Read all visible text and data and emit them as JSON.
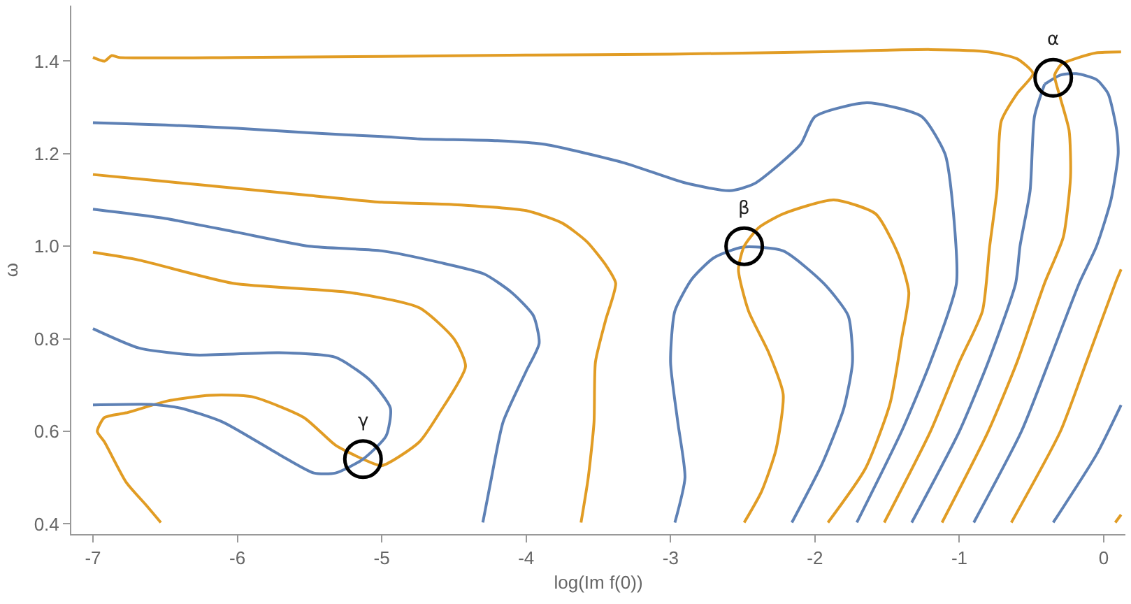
{
  "chart_data": {
    "type": "line",
    "xlabel": "log(Im f(0))",
    "ylabel": "ω",
    "xlim": [
      -7.15,
      0.15
    ],
    "xticks": [
      -7,
      -6,
      -5,
      -4,
      -3,
      -2,
      -1,
      0
    ],
    "ylim": [
      0.378,
      1.52
    ],
    "yticks": [
      0.4,
      0.6,
      0.8,
      {
        "value": 1.0,
        "label": "1.0"
      },
      1.2,
      1.4
    ],
    "grid": false,
    "marker": "none",
    "line_style": "solid",
    "annotations": [
      {
        "text": "α",
        "x": -0.35,
        "y": 1.364
      },
      {
        "text": "β",
        "x": -2.49,
        "y": 1.0
      },
      {
        "text": "γ",
        "x": -5.13,
        "y": 0.54
      }
    ],
    "series": [
      {
        "color": "#e19c24",
        "x": [
          -7,
          -6.92,
          -6.87,
          -6.82,
          -6,
          -5,
          -4,
          -3,
          -2,
          -1.2,
          -0.8,
          -0.6,
          -0.49,
          -0.6,
          -0.71,
          -0.74,
          -0.79,
          -0.84,
          -1.0,
          -1.2,
          -1.52
        ],
        "values": [
          1.408,
          1.4,
          1.412,
          1.408,
          1.408,
          1.41,
          1.413,
          1.415,
          1.42,
          1.425,
          1.42,
          1.405,
          1.373,
          1.33,
          1.27,
          1.12,
          1.0,
          0.86,
          0.75,
          0.6,
          0.403
        ]
      },
      {
        "color": "#5e81b5",
        "x": [
          -7,
          -6.5,
          -6,
          -5.5,
          -5,
          -4.74,
          -4.2,
          -3.87,
          -3.32,
          -2.9,
          -2.59,
          -2.42,
          -2.1,
          -2.0,
          -1.64,
          -1.26,
          -1.1,
          -1.06,
          -1.02,
          -1.2,
          -1.4,
          -1.71
        ],
        "values": [
          1.267,
          1.262,
          1.255,
          1.245,
          1.237,
          1.232,
          1.228,
          1.22,
          1.18,
          1.137,
          1.12,
          1.135,
          1.22,
          1.28,
          1.31,
          1.28,
          1.2,
          1.13,
          0.92,
          0.75,
          0.6,
          0.403
        ]
      },
      {
        "color": "#e19c24",
        "x": [
          -7,
          -6.5,
          -6,
          -5.5,
          -5,
          -4.5,
          -4.0,
          -3.75,
          -3.58,
          -3.45,
          -3.38,
          -3.45,
          -3.52,
          -3.53,
          -3.57,
          -3.62
        ],
        "values": [
          1.155,
          1.14,
          1.125,
          1.11,
          1.095,
          1.09,
          1.077,
          1.05,
          1.01,
          0.96,
          0.92,
          0.84,
          0.75,
          0.62,
          0.5,
          0.403
        ]
      },
      {
        "color": "#5e81b5",
        "x": [
          -7,
          -6.5,
          -6,
          -5.5,
          -5,
          -4.6,
          -4.29,
          -4.1,
          -3.95,
          -3.91,
          -4.0,
          -4.16,
          -4.24,
          -4.3
        ],
        "values": [
          1.08,
          1.06,
          1.03,
          1.0,
          0.99,
          0.965,
          0.94,
          0.9,
          0.85,
          0.79,
          0.73,
          0.62,
          0.5,
          0.403
        ]
      },
      {
        "color": "#e19c24",
        "x": [
          -7,
          -6.68,
          -6.03,
          -5.22,
          -4.74,
          -4.5,
          -4.42,
          -4.6,
          -4.74,
          -5.0,
          -5.13,
          -5.32,
          -5.54,
          -5.9,
          -6.19,
          -6.48,
          -6.77,
          -6.92,
          -6.97,
          -6.92,
          -6.77,
          -6.63,
          -6.53
        ],
        "values": [
          0.987,
          0.97,
          0.92,
          0.9,
          0.867,
          0.8,
          0.74,
          0.64,
          0.577,
          0.526,
          0.54,
          0.57,
          0.63,
          0.675,
          0.678,
          0.666,
          0.64,
          0.63,
          0.6,
          0.577,
          0.49,
          0.44,
          0.403
        ]
      },
      {
        "color": "#5e81b5",
        "x": [
          -7,
          -6.68,
          -6.29,
          -5.71,
          -5.32,
          -5.08,
          -4.94,
          -4.97,
          -5.13,
          -5.32,
          -5.47,
          -5.71,
          -6.1,
          -6.39,
          -6.58,
          -7
        ],
        "values": [
          0.822,
          0.78,
          0.765,
          0.77,
          0.76,
          0.71,
          0.65,
          0.59,
          0.54,
          0.51,
          0.51,
          0.55,
          0.62,
          0.65,
          0.658,
          0.657
        ]
      },
      {
        "color": "#5e81b5",
        "x": [
          -2.97,
          -2.9,
          -2.95,
          -3.0,
          -2.97,
          -2.85,
          -2.7,
          -2.5,
          -2.22,
          -1.94,
          -1.77,
          -1.74,
          -1.8,
          -1.95,
          -2.16
        ],
        "values": [
          0.403,
          0.5,
          0.62,
          0.75,
          0.86,
          0.93,
          0.975,
          0.998,
          0.99,
          0.92,
          0.85,
          0.75,
          0.65,
          0.53,
          0.403
        ]
      },
      {
        "color": "#e19c24",
        "x": [
          -2.49,
          -2.37,
          -2.27,
          -2.22,
          -2.32,
          -2.46,
          -2.53,
          -2.49,
          -2.39,
          -2.22,
          -1.87,
          -1.58,
          -1.42,
          -1.35,
          -1.4,
          -1.48,
          -1.65,
          -1.91
        ],
        "values": [
          0.403,
          0.47,
          0.56,
          0.68,
          0.77,
          0.86,
          0.95,
          1.0,
          1.04,
          1.07,
          1.1,
          1.07,
          0.98,
          0.9,
          0.8,
          0.66,
          0.52,
          0.403
        ]
      },
      {
        "color": "#5e81b5",
        "x": [
          -0.41,
          -0.48,
          -0.51,
          -0.58,
          -0.61,
          -0.8,
          -1.0,
          -1.33
        ],
        "values": [
          1.35,
          1.28,
          1.12,
          1.0,
          0.92,
          0.75,
          0.6,
          0.403
        ]
      },
      {
        "color": "#5e81b5",
        "x": [
          -0.41,
          -0.3,
          -0.19,
          -0.05,
          0.03,
          0.09,
          0.1,
          0.05,
          -0.05,
          -0.17,
          -0.38,
          -0.57,
          -0.9
        ],
        "values": [
          1.35,
          1.37,
          1.373,
          1.36,
          1.33,
          1.25,
          1.2,
          1.1,
          1.0,
          0.92,
          0.75,
          0.6,
          0.403
        ]
      },
      {
        "color": "#e19c24",
        "x": [
          0.12,
          -0.05,
          -0.2,
          -0.29,
          -0.34,
          -0.3,
          -0.24,
          -0.23,
          -0.28,
          -0.41,
          -0.6,
          -0.8,
          -1.12
        ],
        "values": [
          1.42,
          1.418,
          1.405,
          1.394,
          1.37,
          1.32,
          1.25,
          1.15,
          1.02,
          0.92,
          0.75,
          0.6,
          0.403
        ]
      },
      {
        "color": "#e19c24",
        "x": [
          0.12,
          0.08,
          -0.12,
          -0.3,
          -0.64
        ],
        "values": [
          0.95,
          0.92,
          0.75,
          0.6,
          0.403
        ]
      },
      {
        "color": "#5e81b5",
        "x": [
          0.12,
          -0.05,
          -0.35
        ],
        "values": [
          0.657,
          0.55,
          0.403
        ]
      },
      {
        "color": "#e19c24",
        "x": [
          0.08,
          0.12
        ],
        "values": [
          0.403,
          0.42
        ]
      }
    ]
  }
}
